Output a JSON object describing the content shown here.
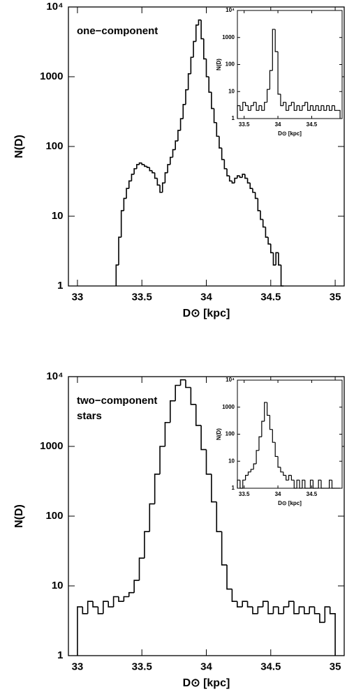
{
  "chart_data": [
    {
      "type": "histogram",
      "xlabel": "D⊙ [kpc]",
      "ylabel": "N(D)",
      "annotation": [
        "one−component"
      ],
      "log_y": true,
      "xlim": [
        32.93,
        35.07
      ],
      "ylim": [
        1,
        10000
      ],
      "xticks": [
        33,
        33.5,
        34,
        34.5,
        35
      ],
      "yticks": [
        1,
        10,
        100,
        1000,
        {
          "value": 10000,
          "label": "10⁴"
        }
      ],
      "color": "#000000",
      "bins": [
        33.3,
        33.32,
        33.34,
        33.36,
        33.38,
        33.4,
        33.42,
        33.44,
        33.46,
        33.48,
        33.5,
        33.52,
        33.54,
        33.56,
        33.58,
        33.6,
        33.62,
        33.64,
        33.66,
        33.68,
        33.7,
        33.72,
        33.74,
        33.76,
        33.78,
        33.8,
        33.82,
        33.84,
        33.86,
        33.88,
        33.9,
        33.92,
        33.94,
        33.96,
        33.98,
        34.0,
        34.02,
        34.04,
        34.06,
        34.08,
        34.1,
        34.12,
        34.14,
        34.16,
        34.18,
        34.2,
        34.22,
        34.24,
        34.26,
        34.28,
        34.3,
        34.32,
        34.34,
        34.36,
        34.38,
        34.4,
        34.42,
        34.44,
        34.46,
        34.48,
        34.5,
        34.52,
        34.54,
        34.56,
        34.58,
        34.6
      ],
      "values": [
        2,
        5,
        12,
        18,
        25,
        32,
        40,
        48,
        55,
        58,
        55,
        52,
        50,
        45,
        42,
        35,
        28,
        22,
        30,
        42,
        55,
        70,
        90,
        120,
        170,
        250,
        400,
        650,
        1100,
        1900,
        3200,
        5500,
        6500,
        3500,
        1800,
        1000,
        600,
        350,
        220,
        140,
        95,
        65,
        48,
        38,
        32,
        30,
        35,
        38,
        36,
        40,
        35,
        30,
        25,
        22,
        18,
        12,
        9,
        7,
        5,
        4,
        3,
        2,
        3,
        2,
        1
      ]
    },
    {
      "type": "histogram",
      "xlabel": "D⊙ [kpc]",
      "ylabel": "N(D)",
      "log_y": true,
      "xlim": [
        33.4,
        34.95
      ],
      "ylim": [
        1,
        10000
      ],
      "xticks": [
        33.5,
        34,
        34.5
      ],
      "yticks": [
        1,
        10,
        100,
        1000,
        {
          "value": 10000,
          "label": "10⁴"
        }
      ],
      "color": "#000000",
      "bins": [
        33.4,
        33.44,
        33.48,
        33.52,
        33.56,
        33.6,
        33.64,
        33.68,
        33.72,
        33.76,
        33.8,
        33.84,
        33.88,
        33.92,
        33.96,
        34.0,
        34.04,
        34.08,
        34.12,
        34.16,
        34.2,
        34.24,
        34.28,
        34.32,
        34.36,
        34.4,
        34.44,
        34.48,
        34.52,
        34.56,
        34.6,
        34.64,
        34.68,
        34.72,
        34.76,
        34.8,
        34.84,
        34.88,
        34.92
      ],
      "values": [
        3,
        2,
        4,
        3,
        2,
        3,
        4,
        2,
        3,
        2,
        4,
        12,
        60,
        2000,
        300,
        8,
        3,
        4,
        2,
        3,
        4,
        2,
        3,
        2,
        3,
        4,
        2,
        3,
        2,
        3,
        2,
        3,
        2,
        3,
        2,
        3,
        2,
        2
      ]
    },
    {
      "type": "histogram",
      "xlabel": "D⊙ [kpc]",
      "ylabel": "N(D)",
      "annotation": [
        "two−component",
        "stars"
      ],
      "log_y": true,
      "xlim": [
        32.93,
        35.07
      ],
      "ylim": [
        1,
        10000
      ],
      "xticks": [
        33,
        33.5,
        34,
        34.5,
        35
      ],
      "yticks": [
        1,
        10,
        100,
        1000,
        {
          "value": 10000,
          "label": "10⁴"
        }
      ],
      "color": "#000000",
      "bins": [
        33.0,
        33.04,
        33.08,
        33.12,
        33.16,
        33.2,
        33.24,
        33.28,
        33.32,
        33.36,
        33.4,
        33.44,
        33.48,
        33.52,
        33.56,
        33.6,
        33.64,
        33.68,
        33.72,
        33.76,
        33.8,
        33.84,
        33.88,
        33.92,
        33.96,
        34.0,
        34.04,
        34.08,
        34.12,
        34.16,
        34.2,
        34.24,
        34.28,
        34.32,
        34.36,
        34.4,
        34.44,
        34.48,
        34.52,
        34.56,
        34.6,
        34.64,
        34.68,
        34.72,
        34.76,
        34.8,
        34.84,
        34.88,
        34.92,
        34.96,
        35.0
      ],
      "values": [
        5,
        4,
        6,
        5,
        4,
        6,
        5,
        7,
        6,
        7,
        8,
        12,
        25,
        60,
        150,
        400,
        1000,
        2200,
        4500,
        7500,
        9000,
        7000,
        4000,
        2000,
        900,
        400,
        160,
        60,
        20,
        9,
        6,
        5,
        6,
        5,
        4,
        5,
        6,
        4,
        5,
        4,
        5,
        6,
        4,
        5,
        4,
        5,
        4,
        3,
        5,
        4
      ]
    },
    {
      "type": "histogram",
      "xlabel": "D⊙ [kpc]",
      "ylabel": "N(D)",
      "log_y": true,
      "xlim": [
        33.4,
        34.95
      ],
      "ylim": [
        1,
        10000
      ],
      "xticks": [
        33.5,
        34,
        34.5
      ],
      "yticks": [
        1,
        10,
        100,
        1000,
        {
          "value": 10000,
          "label": "10⁴"
        }
      ],
      "color": "#000000",
      "bins": [
        33.4,
        33.44,
        33.48,
        33.52,
        33.56,
        33.6,
        33.64,
        33.68,
        33.72,
        33.76,
        33.8,
        33.84,
        33.88,
        33.92,
        33.96,
        34.0,
        34.04,
        34.08,
        34.12,
        34.16,
        34.2,
        34.24,
        34.28,
        34.32,
        34.36,
        34.4,
        34.44,
        34.48,
        34.52,
        34.56,
        34.6,
        34.64,
        34.68,
        34.72,
        34.76,
        34.8,
        34.84,
        34.88,
        34.92
      ],
      "values": [
        2,
        1,
        2,
        3,
        4,
        5,
        8,
        25,
        80,
        300,
        1500,
        500,
        150,
        50,
        15,
        6,
        4,
        3,
        2,
        3,
        2,
        1,
        2,
        1,
        2,
        1,
        1,
        2,
        1,
        1,
        2,
        1,
        1,
        1,
        2,
        1,
        1,
        1
      ]
    }
  ]
}
